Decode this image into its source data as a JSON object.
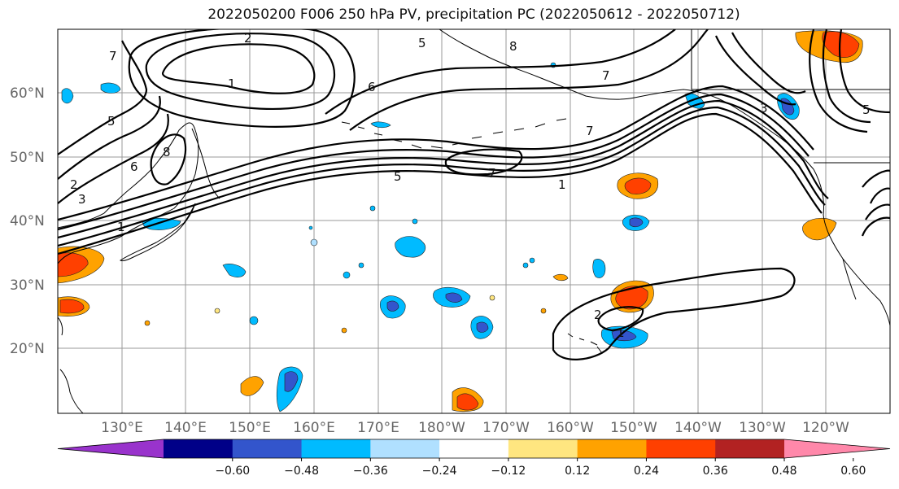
{
  "title": "2022050200 F006 250 hPa PV, precipitation PC (2022050612 - 2022050712)",
  "latitude_labels": [
    "60°N",
    "50°N",
    "40°N",
    "30°N",
    "20°N"
  ],
  "longitude_labels": [
    "130°E",
    "140°E",
    "150°E",
    "160°E",
    "170°E",
    "180°W",
    "170°W",
    "160°W",
    "150°W",
    "140°W",
    "130°W",
    "120°W"
  ],
  "colorbar": {
    "colors": [
      "#9933cc",
      "#000088",
      "#3355cc",
      "#00bbff",
      "#b0e0ff",
      "#ffffff",
      "#ffe680",
      "#ffa200",
      "#ff4000",
      "#b22222",
      "#ff88aa"
    ],
    "tick_labels": [
      "−0.60",
      "−0.48",
      "−0.36",
      "−0.24",
      "−0.12",
      "0.12",
      "0.24",
      "0.36",
      "0.48",
      "0.60"
    ]
  },
  "contour_labels": [
    "7",
    "2",
    "1",
    "5",
    "8",
    "6",
    "5",
    "7",
    "2",
    "3",
    "8",
    "7",
    "7",
    "5",
    "1",
    "6",
    "3",
    "5",
    "1",
    "2",
    "1"
  ],
  "precip_colors": {
    "neg_light": "#b0e0ff",
    "neg_mid": "#00bbff",
    "neg_strong": "#3355cc",
    "pos_light": "#ffe680",
    "pos_mid": "#ffa200",
    "pos_strong": "#ff4000"
  }
}
